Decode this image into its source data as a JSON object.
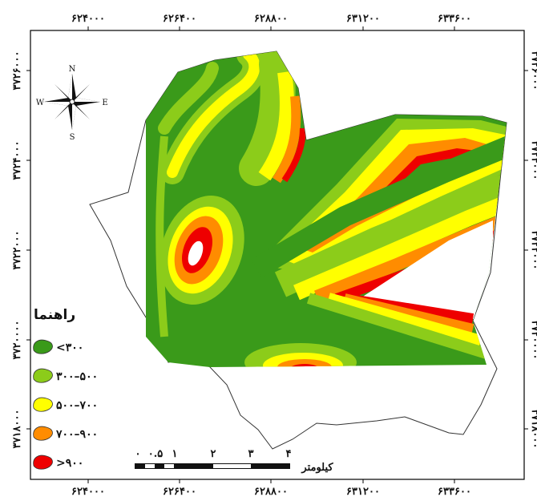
{
  "map": {
    "x_ticks": [
      "۶۲۴۰۰۰",
      "۶۲۶۴۰۰",
      "۶۲۸۸۰۰",
      "۶۳۱۲۰۰",
      "۶۳۳۶۰۰"
    ],
    "y_ticks": [
      "۳۷۲۶۰۰۰",
      "۳۷۲۴۰۰۰",
      "۳۷۲۲۰۰۰",
      "۳۷۲۰۰۰۰",
      "۳۷۱۸۰۰۰"
    ]
  },
  "compass": {
    "n": "N",
    "s": "S",
    "e": "E",
    "w": "W"
  },
  "legend": {
    "title": "راهنما",
    "items": [
      {
        "label": "<۳۰۰",
        "color": "#3a9a1a"
      },
      {
        "label": "۳۰۰–۵۰۰",
        "color": "#8ccc1a"
      },
      {
        "label": "۵۰۰–۷۰۰",
        "color": "#ffff00"
      },
      {
        "label": "۷۰۰–۹۰۰",
        "color": "#ff8c00"
      },
      {
        "label": ">۹۰۰",
        "color": "#ee0000"
      }
    ]
  },
  "scalebar": {
    "labels": [
      "۰",
      "۰.۵",
      "۱",
      "۲",
      "۳",
      "۴"
    ],
    "unit": "کیلومتر"
  }
}
